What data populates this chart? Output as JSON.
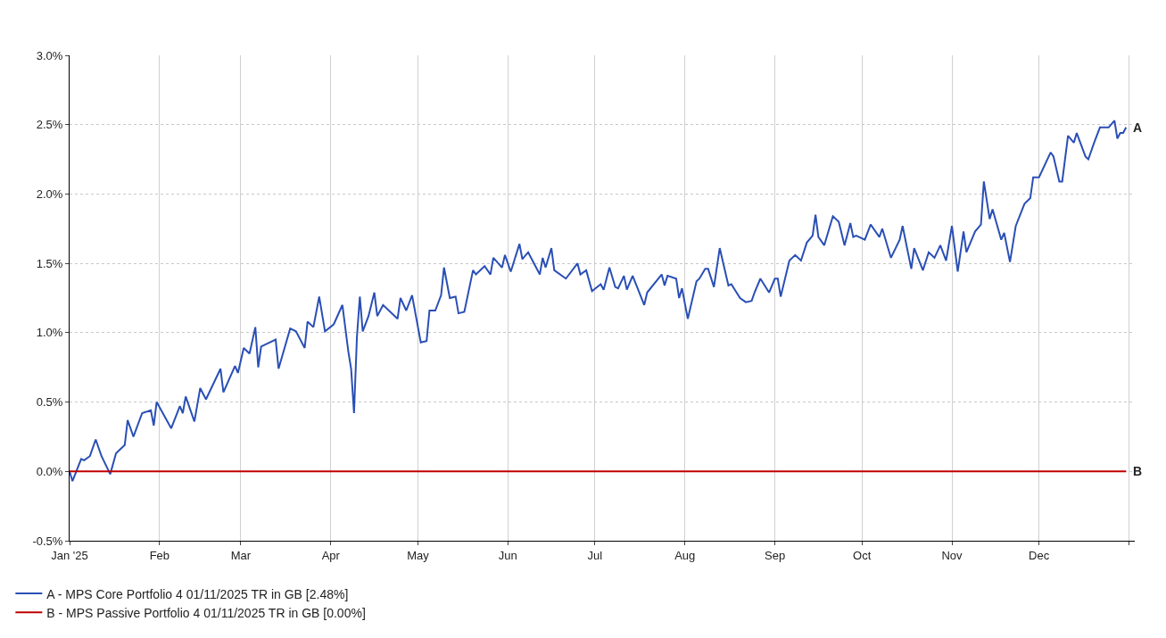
{
  "chart_data": {
    "type": "line",
    "x": [
      "2025-01-01",
      "2025-01-02",
      "2025-01-05",
      "2025-01-06",
      "2025-01-08",
      "2025-01-10",
      "2025-01-12",
      "2025-01-15",
      "2025-01-17",
      "2025-01-20",
      "2025-01-21",
      "2025-01-23",
      "2025-01-26",
      "2025-01-29",
      "2025-01-30",
      "2025-01-31",
      "2025-02-05",
      "2025-02-08",
      "2025-02-09",
      "2025-02-10",
      "2025-02-13",
      "2025-02-15",
      "2025-02-17",
      "2025-02-22",
      "2025-02-23",
      "2025-02-27",
      "2025-02-28",
      "2025-03-02",
      "2025-03-04",
      "2025-03-06",
      "2025-03-07",
      "2025-03-08",
      "2025-03-13",
      "2025-03-14",
      "2025-03-18",
      "2025-03-20",
      "2025-03-23",
      "2025-03-24",
      "2025-03-26",
      "2025-03-28",
      "2025-03-30",
      "2025-04-02",
      "2025-04-05",
      "2025-04-07",
      "2025-04-08",
      "2025-04-09",
      "2025-04-10",
      "2025-04-11",
      "2025-04-12",
      "2025-04-14",
      "2025-04-16",
      "2025-04-17",
      "2025-04-19",
      "2025-04-24",
      "2025-04-25",
      "2025-04-27",
      "2025-04-29",
      "2025-05-02",
      "2025-05-04",
      "2025-05-05",
      "2025-05-07",
      "2025-05-09",
      "2025-05-10",
      "2025-05-12",
      "2025-05-14",
      "2025-05-15",
      "2025-05-17",
      "2025-05-20",
      "2025-05-21",
      "2025-05-24",
      "2025-05-26",
      "2025-05-27",
      "2025-05-30",
      "2025-05-31",
      "2025-06-02",
      "2025-06-05",
      "2025-06-06",
      "2025-06-08",
      "2025-06-12",
      "2025-06-13",
      "2025-06-14",
      "2025-06-16",
      "2025-06-17",
      "2025-06-21",
      "2025-06-25",
      "2025-06-26",
      "2025-06-28",
      "2025-06-30",
      "2025-07-03",
      "2025-07-04",
      "2025-07-06",
      "2025-07-08",
      "2025-07-09",
      "2025-07-11",
      "2025-07-12",
      "2025-07-14",
      "2025-07-18",
      "2025-07-19",
      "2025-07-24",
      "2025-07-25",
      "2025-07-26",
      "2025-07-29",
      "2025-07-30",
      "2025-07-31",
      "2025-08-02",
      "2025-08-05",
      "2025-08-06",
      "2025-08-08",
      "2025-08-09",
      "2025-08-11",
      "2025-08-13",
      "2025-08-16",
      "2025-08-17",
      "2025-08-20",
      "2025-08-22",
      "2025-08-24",
      "2025-08-25",
      "2025-08-27",
      "2025-08-30",
      "2025-09-01",
      "2025-09-02",
      "2025-09-03",
      "2025-09-06",
      "2025-09-08",
      "2025-09-10",
      "2025-09-12",
      "2025-09-14",
      "2025-09-15",
      "2025-09-16",
      "2025-09-18",
      "2025-09-21",
      "2025-09-23",
      "2025-09-25",
      "2025-09-27",
      "2025-09-28",
      "2025-09-29",
      "2025-10-02",
      "2025-10-04",
      "2025-10-07",
      "2025-10-08",
      "2025-10-11",
      "2025-10-14",
      "2025-10-15",
      "2025-10-18",
      "2025-10-19",
      "2025-10-22",
      "2025-10-24",
      "2025-10-26",
      "2025-10-28",
      "2025-10-30",
      "2025-11-01",
      "2025-11-03",
      "2025-11-05",
      "2025-11-06",
      "2025-11-09",
      "2025-11-11",
      "2025-11-12",
      "2025-11-14",
      "2025-11-15",
      "2025-11-18",
      "2025-11-19",
      "2025-11-21",
      "2025-11-23",
      "2025-11-26",
      "2025-11-28",
      "2025-11-29",
      "2025-12-01",
      "2025-12-05",
      "2025-12-06",
      "2025-12-08",
      "2025-12-09",
      "2025-12-11",
      "2025-12-13",
      "2025-12-14",
      "2025-12-17",
      "2025-12-18",
      "2025-12-20",
      "2025-12-22",
      "2025-12-25",
      "2025-12-27",
      "2025-12-28",
      "2025-12-29",
      "2025-12-30",
      "2025-12-31"
    ],
    "series": [
      {
        "name": "A - MPS Core Portfolio 4 01/11/2025 TR in GB [2.48%]",
        "color": "#2a4fb5",
        "values": [
          0.0,
          -0.07,
          0.09,
          0.08,
          0.11,
          0.23,
          0.11,
          -0.02,
          0.13,
          0.19,
          0.37,
          0.25,
          0.42,
          0.44,
          0.33,
          0.5,
          0.31,
          0.47,
          0.42,
          0.54,
          0.36,
          0.6,
          0.52,
          0.74,
          0.57,
          0.76,
          0.71,
          0.89,
          0.85,
          1.04,
          0.75,
          0.9,
          0.95,
          0.74,
          1.03,
          1.01,
          0.89,
          1.08,
          1.04,
          1.26,
          1.01,
          1.06,
          1.2,
          0.87,
          0.74,
          0.42,
          0.97,
          1.26,
          1.01,
          1.12,
          1.29,
          1.12,
          1.2,
          1.1,
          1.25,
          1.16,
          1.27,
          0.93,
          0.94,
          1.16,
          1.16,
          1.27,
          1.47,
          1.25,
          1.26,
          1.14,
          1.15,
          1.45,
          1.42,
          1.48,
          1.42,
          1.54,
          1.47,
          1.56,
          1.44,
          1.64,
          1.53,
          1.58,
          1.42,
          1.54,
          1.47,
          1.61,
          1.45,
          1.39,
          1.5,
          1.42,
          1.45,
          1.3,
          1.35,
          1.31,
          1.47,
          1.33,
          1.32,
          1.41,
          1.31,
          1.41,
          1.2,
          1.29,
          1.42,
          1.34,
          1.41,
          1.39,
          1.25,
          1.32,
          1.1,
          1.37,
          1.39,
          1.46,
          1.46,
          1.33,
          1.61,
          1.34,
          1.35,
          1.25,
          1.22,
          1.23,
          1.29,
          1.39,
          1.29,
          1.39,
          1.39,
          1.26,
          1.52,
          1.56,
          1.52,
          1.65,
          1.7,
          1.85,
          1.69,
          1.63,
          1.84,
          1.8,
          1.63,
          1.79,
          1.69,
          1.7,
          1.67,
          1.78,
          1.69,
          1.75,
          1.54,
          1.67,
          1.77,
          1.46,
          1.61,
          1.45,
          1.58,
          1.54,
          1.63,
          1.52,
          1.77,
          1.44,
          1.73,
          1.58,
          1.73,
          1.78,
          2.09,
          1.82,
          1.89,
          1.67,
          1.72,
          1.51,
          1.77,
          1.93,
          1.97,
          2.12,
          2.12,
          2.3,
          2.27,
          2.09,
          2.09,
          2.42,
          2.37,
          2.44,
          2.27,
          2.25,
          2.37,
          2.48,
          2.48,
          2.53,
          2.4,
          2.44,
          2.44,
          2.48
        ]
      },
      {
        "name": "B - MPS Passive Portfolio 4 01/11/2025 TR in GB [0.00%]",
        "color": "#c00000",
        "x": [
          "2025-01-01",
          "2025-12-31"
        ],
        "values": [
          0.0,
          0.0
        ]
      }
    ],
    "annotations": [
      {
        "text": "A",
        "x": "2025-12-31",
        "y": 2.48
      },
      {
        "text": "B",
        "x": "2025-12-31",
        "y": 0.0
      }
    ],
    "xlim": [
      "2025-01-01",
      "2026-01-03"
    ],
    "xticks": [
      {
        "value": "2025-01-01",
        "label": "Jan '25"
      },
      {
        "value": "2025-02-01",
        "label": "Feb"
      },
      {
        "value": "2025-03-01",
        "label": "Mar"
      },
      {
        "value": "2025-04-01",
        "label": "Apr"
      },
      {
        "value": "2025-05-01",
        "label": "May"
      },
      {
        "value": "2025-06-01",
        "label": "Jun"
      },
      {
        "value": "2025-07-01",
        "label": "Jul"
      },
      {
        "value": "2025-08-01",
        "label": "Aug"
      },
      {
        "value": "2025-09-01",
        "label": "Sep"
      },
      {
        "value": "2025-10-01",
        "label": "Oct"
      },
      {
        "value": "2025-11-01",
        "label": "Nov"
      },
      {
        "value": "2025-12-01",
        "label": "Dec"
      },
      {
        "value": "2026-01-01",
        "label": null
      }
    ],
    "ylim": [
      -0.5,
      3.0
    ],
    "yticks": [
      {
        "value": -0.5,
        "label": "-0.5%"
      },
      {
        "value": 0.0,
        "label": "0.0%"
      },
      {
        "value": 0.5,
        "label": "0.5%"
      },
      {
        "value": 1.0,
        "label": "1.0%"
      },
      {
        "value": 1.5,
        "label": "1.5%"
      },
      {
        "value": 2.0,
        "label": "2.0%"
      },
      {
        "value": 2.5,
        "label": "2.5%"
      },
      {
        "value": 3.0,
        "label": "3.0%"
      }
    ],
    "grid": true,
    "legend": "bottom left",
    "marker": "none",
    "line_style": "solid"
  }
}
